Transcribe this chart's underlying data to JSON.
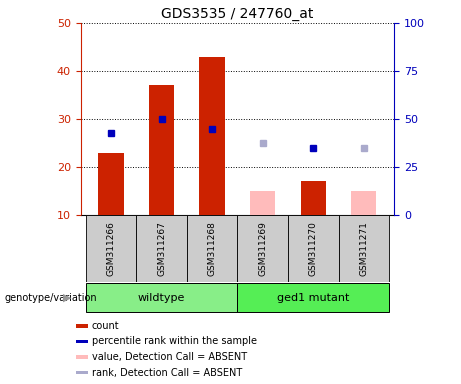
{
  "title": "GDS3535 / 247760_at",
  "samples": [
    "GSM311266",
    "GSM311267",
    "GSM311268",
    "GSM311269",
    "GSM311270",
    "GSM311271"
  ],
  "count_values": [
    23,
    37,
    43,
    null,
    17,
    null
  ],
  "count_absent_values": [
    null,
    null,
    null,
    15,
    null,
    15
  ],
  "percentile_present": [
    27,
    30,
    28,
    null,
    24,
    null
  ],
  "percentile_absent": [
    null,
    null,
    null,
    25,
    null,
    24
  ],
  "ylim_left": [
    10,
    50
  ],
  "ylim_right": [
    0,
    100
  ],
  "y_ticks_left": [
    10,
    20,
    30,
    40,
    50
  ],
  "y_ticks_right": [
    0,
    25,
    50,
    75,
    100
  ],
  "color_count": "#cc2200",
  "color_count_absent": "#ffbbbb",
  "color_percentile": "#0000bb",
  "color_percentile_absent": "#aaaacc",
  "color_wildtype": "#88ee88",
  "color_ged1": "#55ee55",
  "color_gray_box": "#cccccc",
  "bar_width": 0.5,
  "legend_items": [
    [
      "#cc2200",
      "count"
    ],
    [
      "#0000bb",
      "percentile rank within the sample"
    ],
    [
      "#ffbbbb",
      "value, Detection Call = ABSENT"
    ],
    [
      "#aaaacc",
      "rank, Detection Call = ABSENT"
    ]
  ]
}
